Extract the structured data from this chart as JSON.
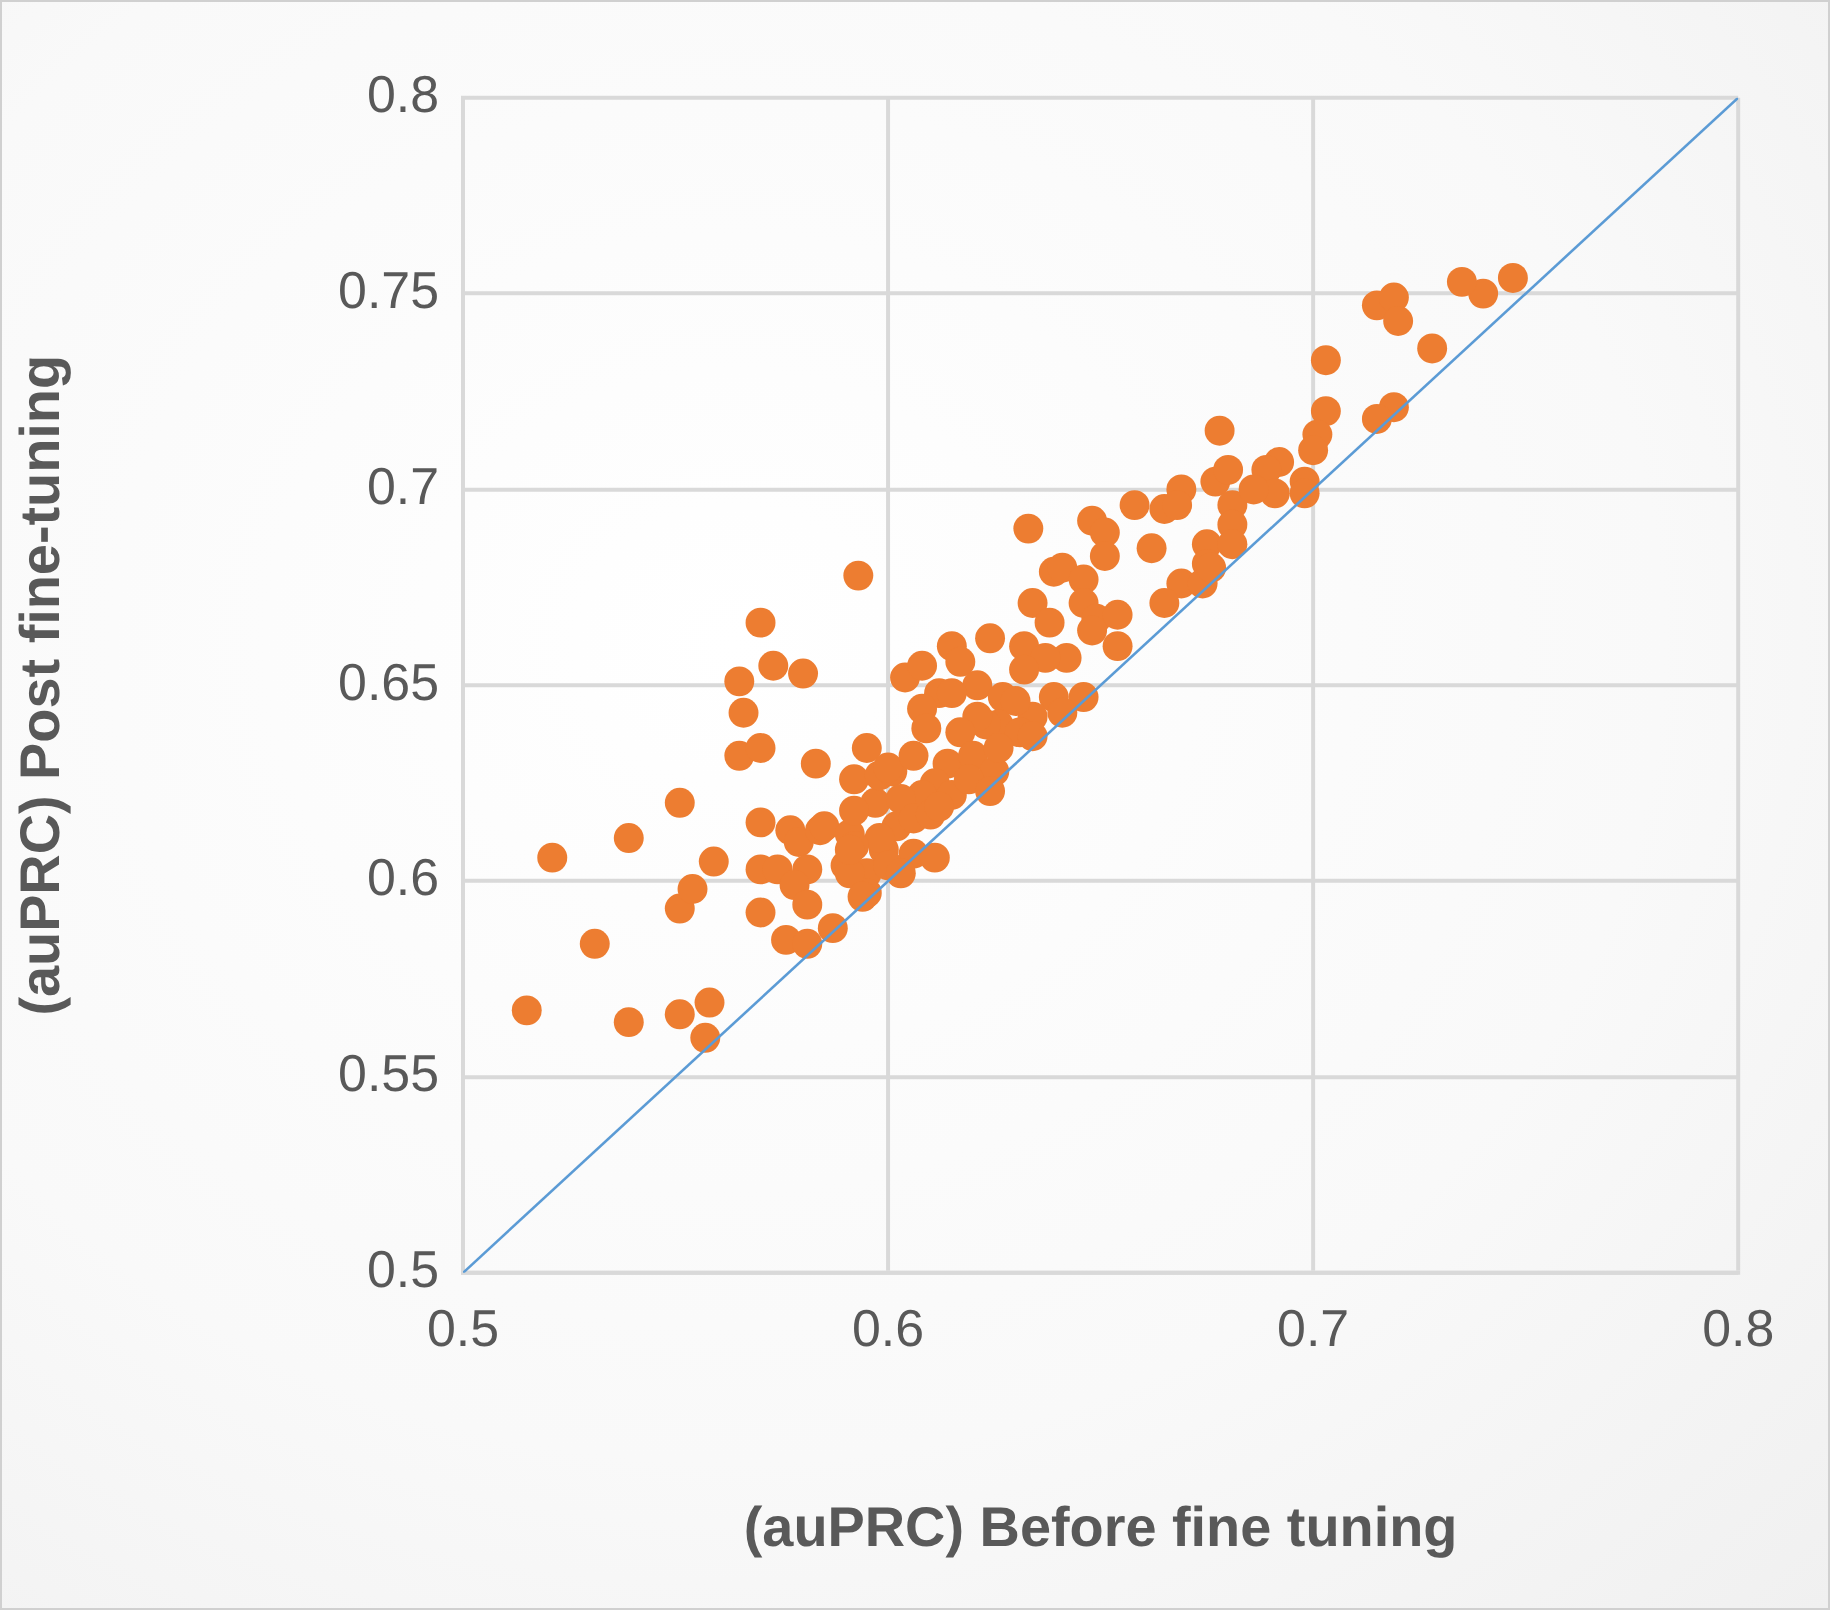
{
  "chart_data": {
    "type": "scatter",
    "xlabel": "(auPRC) Before fine tuning",
    "ylabel": "(auPRC) Post fine-tuning",
    "xlim": [
      0.5,
      0.8
    ],
    "ylim": [
      0.5,
      0.8
    ],
    "xticks": [
      0.5,
      0.6,
      0.7,
      0.8
    ],
    "yticks": [
      0.5,
      0.55,
      0.6,
      0.65,
      0.7,
      0.75,
      0.8
    ],
    "grid": true,
    "series": [
      {
        "marker": "circle",
        "color": "#ed7d31",
        "x": [
          0.515,
          0.521,
          0.531,
          0.539,
          0.539,
          0.551,
          0.551,
          0.551,
          0.554,
          0.558,
          0.557,
          0.559,
          0.565,
          0.566,
          0.565,
          0.57,
          0.57,
          0.57,
          0.57,
          0.57,
          0.573,
          0.574,
          0.576,
          0.577,
          0.58,
          0.579,
          0.581,
          0.583,
          0.584,
          0.585,
          0.587,
          0.59,
          0.593,
          0.591,
          0.592,
          0.595,
          0.595,
          0.595,
          0.597,
          0.598,
          0.601,
          0.599,
          0.604,
          0.608,
          0.615,
          0.617,
          0.621,
          0.624,
          0.612,
          0.608,
          0.615,
          0.627,
          0.632,
          0.634,
          0.638,
          0.639,
          0.641,
          0.646,
          0.648,
          0.651,
          0.651,
          0.646,
          0.649,
          0.648,
          0.654,
          0.654,
          0.646,
          0.642,
          0.637,
          0.632,
          0.639,
          0.641,
          0.634,
          0.63,
          0.626,
          0.623,
          0.621,
          0.617,
          0.609,
          0.6,
          0.606,
          0.614,
          0.62,
          0.625,
          0.631,
          0.634,
          0.626,
          0.611,
          0.608,
          0.615,
          0.619,
          0.624,
          0.603,
          0.592,
          0.602,
          0.606,
          0.61,
          0.598,
          0.606,
          0.592,
          0.591,
          0.594,
          0.6,
          0.603,
          0.612,
          0.658,
          0.665,
          0.669,
          0.677,
          0.68,
          0.662,
          0.669,
          0.665,
          0.675,
          0.675,
          0.674,
          0.681,
          0.681,
          0.747,
          0.74,
          0.735,
          0.715,
          0.719,
          0.72,
          0.728,
          0.703,
          0.703,
          0.719,
          0.715,
          0.701,
          0.7,
          0.698,
          0.698,
          0.692,
          0.689,
          0.691,
          0.686,
          0.678,
          0.681,
          0.676,
          0.668,
          0.581,
          0.578,
          0.581,
          0.591,
          0.611,
          0.633
        ],
        "values": [
          0.567,
          0.606,
          0.584,
          0.611,
          0.564,
          0.62,
          0.593,
          0.566,
          0.598,
          0.569,
          0.56,
          0.605,
          0.651,
          0.643,
          0.632,
          0.666,
          0.634,
          0.615,
          0.603,
          0.592,
          0.655,
          0.603,
          0.585,
          0.613,
          0.653,
          0.61,
          0.584,
          0.63,
          0.613,
          0.614,
          0.588,
          0.604,
          0.678,
          0.612,
          0.626,
          0.634,
          0.602,
          0.597,
          0.62,
          0.627,
          0.628,
          0.608,
          0.652,
          0.655,
          0.66,
          0.656,
          0.65,
          0.662,
          0.648,
          0.644,
          0.648,
          0.647,
          0.66,
          0.671,
          0.666,
          0.679,
          0.68,
          0.677,
          0.692,
          0.689,
          0.683,
          0.671,
          0.667,
          0.664,
          0.668,
          0.66,
          0.647,
          0.657,
          0.657,
          0.654,
          0.647,
          0.643,
          0.642,
          0.646,
          0.64,
          0.64,
          0.642,
          0.638,
          0.639,
          0.629,
          0.632,
          0.63,
          0.632,
          0.628,
          0.638,
          0.637,
          0.634,
          0.625,
          0.622,
          0.622,
          0.626,
          0.623,
          0.621,
          0.618,
          0.614,
          0.616,
          0.617,
          0.611,
          0.607,
          0.609,
          0.602,
          0.596,
          0.604,
          0.602,
          0.619,
          0.696,
          0.695,
          0.7,
          0.702,
          0.705,
          0.685,
          0.676,
          0.671,
          0.686,
          0.681,
          0.676,
          0.696,
          0.691,
          0.754,
          0.75,
          0.753,
          0.747,
          0.749,
          0.743,
          0.736,
          0.733,
          0.72,
          0.721,
          0.718,
          0.714,
          0.71,
          0.702,
          0.699,
          0.707,
          0.705,
          0.699,
          0.7,
          0.715,
          0.686,
          0.68,
          0.696,
          0.603,
          0.599,
          0.594,
          0.608,
          0.606,
          0.69
        ]
      },
      {
        "type": "line",
        "color": "#5b9bd5",
        "x": [
          0.5,
          0.8
        ],
        "values": [
          0.5,
          0.8
        ]
      }
    ]
  }
}
